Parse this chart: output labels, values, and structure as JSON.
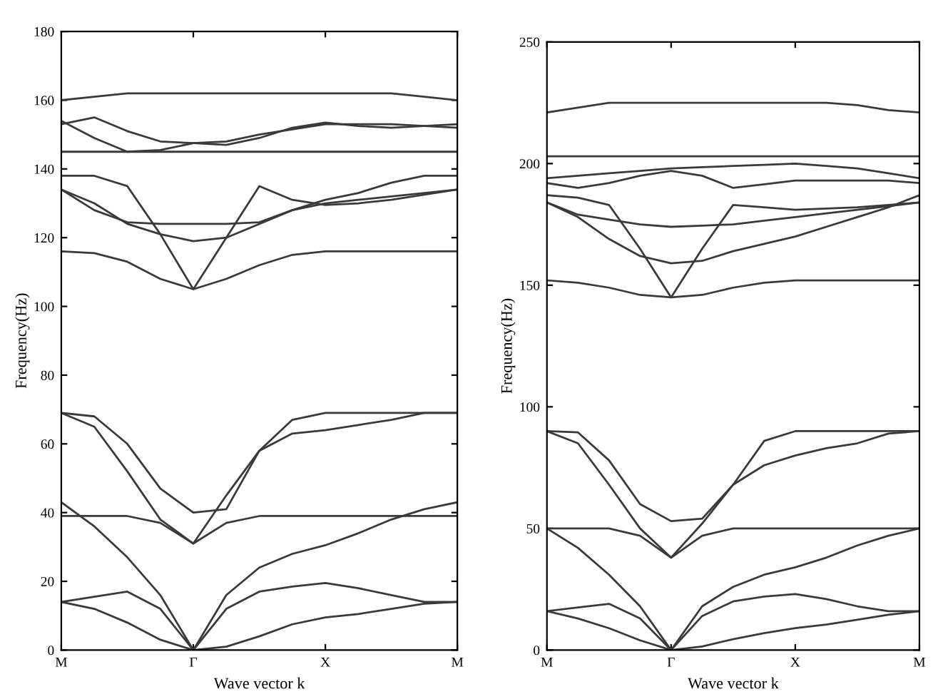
{
  "chart_data": [
    {
      "type": "line",
      "xlabel": "Wave vector k",
      "ylabel": "Frequency(Hz)",
      "categories": [
        "M",
        null,
        null,
        null,
        "Γ",
        null,
        null,
        null,
        "X",
        null,
        null,
        null,
        "M"
      ],
      "ylim": [
        0,
        180
      ],
      "yticks": [
        0,
        20,
        40,
        60,
        80,
        100,
        120,
        140,
        160,
        180
      ],
      "grid": false,
      "legend": false,
      "marker": "none",
      "line_style": "solid",
      "series": [
        {
          "color": "#3a3a3a",
          "values": [
            14,
            12,
            8,
            3,
            0,
            1,
            4,
            7.5,
            9.5,
            10.5,
            12,
            13.5,
            14
          ]
        },
        {
          "color": "#3a3a3a",
          "values": [
            14,
            15.5,
            17,
            12,
            0,
            12,
            17,
            18.5,
            19.5,
            18,
            16,
            14,
            14
          ]
        },
        {
          "color": "#3a3a3a",
          "values": [
            43,
            36,
            27,
            16,
            0,
            16,
            24,
            28,
            30.5,
            34,
            38,
            41,
            43
          ]
        },
        {
          "color": "#3a3a3a",
          "values": [
            39,
            39,
            39,
            37,
            31,
            37,
            39,
            39,
            39,
            39,
            39,
            39,
            39
          ]
        },
        {
          "color": "#3a3a3a",
          "values": [
            69,
            68,
            60,
            47,
            40,
            41,
            58,
            67,
            69,
            69,
            69,
            69,
            69
          ]
        },
        {
          "color": "#3a3a3a",
          "values": [
            69,
            65,
            52,
            38,
            31,
            45,
            58,
            63,
            64,
            65.5,
            67,
            69,
            69
          ]
        },
        {
          "color": "#3a3a3a",
          "values": [
            116,
            115.5,
            113,
            108,
            105,
            108,
            112,
            115,
            116,
            116,
            116,
            116,
            116
          ]
        },
        {
          "color": "#3a3a3a",
          "values": [
            134,
            130,
            124,
            121,
            119,
            120,
            124,
            128,
            130,
            131,
            132,
            133,
            134
          ]
        },
        {
          "color": "#3a3a3a",
          "values": [
            134,
            128,
            124.5,
            124,
            124,
            124,
            124.5,
            128,
            131,
            133,
            136,
            138,
            138
          ]
        },
        {
          "color": "#3a3a3a",
          "values": [
            138,
            138,
            135,
            121,
            105,
            120,
            135,
            131,
            129.5,
            130,
            131,
            132.5,
            134
          ]
        },
        {
          "color": "#3a3a3a",
          "values": [
            145,
            145,
            145,
            145,
            145,
            145,
            145,
            145,
            145,
            145,
            145,
            145,
            145
          ]
        },
        {
          "color": "#3a3a3a",
          "values": [
            153,
            155,
            151,
            148,
            147.5,
            147,
            149,
            152,
            153.5,
            152.5,
            152,
            152.5,
            153
          ]
        },
        {
          "color": "#3a3a3a",
          "values": [
            154,
            149,
            145,
            145.5,
            147.5,
            148,
            150,
            151.5,
            153,
            153,
            153,
            152.5,
            152
          ]
        },
        {
          "color": "#3a3a3a",
          "values": [
            160,
            161,
            162,
            162,
            162,
            162,
            162,
            162,
            162,
            162,
            162,
            161,
            160
          ]
        }
      ]
    },
    {
      "type": "line",
      "xlabel": "Wave vector k",
      "ylabel": "Frequency(Hz)",
      "categories": [
        "M",
        null,
        null,
        null,
        "Γ",
        null,
        null,
        null,
        "X",
        null,
        null,
        null,
        "M"
      ],
      "ylim": [
        0,
        250
      ],
      "yticks": [
        0,
        50,
        100,
        150,
        200,
        250
      ],
      "grid": false,
      "legend": false,
      "marker": "none",
      "line_style": "solid",
      "series": [
        {
          "color": "#3a3a3a",
          "values": [
            16,
            13,
            9,
            4,
            0,
            1.5,
            4.5,
            7,
            9,
            10.5,
            12.5,
            14.5,
            16
          ]
        },
        {
          "color": "#3a3a3a",
          "values": [
            16,
            17.5,
            19,
            13,
            0,
            14,
            20,
            22,
            23,
            21,
            18,
            16,
            16
          ]
        },
        {
          "color": "#3a3a3a",
          "values": [
            50,
            42,
            31,
            18,
            0,
            18,
            26,
            31,
            34,
            38,
            43,
            47,
            50
          ]
        },
        {
          "color": "#3a3a3a",
          "values": [
            50,
            50,
            50,
            47,
            38,
            47,
            50,
            50,
            50,
            50,
            50,
            50,
            50
          ]
        },
        {
          "color": "#3a3a3a",
          "values": [
            90,
            89.5,
            78,
            60,
            53,
            54,
            68,
            86,
            90,
            90,
            90,
            90,
            90
          ]
        },
        {
          "color": "#3a3a3a",
          "values": [
            90,
            85,
            68,
            50,
            38,
            52,
            68,
            76,
            80,
            83,
            85,
            89,
            90
          ]
        },
        {
          "color": "#3a3a3a",
          "values": [
            152,
            151,
            149,
            146,
            145,
            146,
            149,
            151,
            152,
            152,
            152,
            152,
            152
          ]
        },
        {
          "color": "#3a3a3a",
          "values": [
            184,
            178,
            169,
            162,
            159,
            160,
            164,
            167,
            170,
            174,
            178,
            182,
            187
          ]
        },
        {
          "color": "#3a3a3a",
          "values": [
            184,
            179,
            177,
            175,
            174,
            174.5,
            175,
            176.5,
            178,
            179.5,
            181,
            182.5,
            184
          ]
        },
        {
          "color": "#3a3a3a",
          "values": [
            187,
            186,
            183,
            165,
            145,
            165,
            183,
            182,
            181,
            181.5,
            182,
            183,
            184
          ]
        },
        {
          "color": "#3a3a3a",
          "values": [
            192,
            190,
            192,
            195,
            197,
            195,
            190,
            191.5,
            193,
            193,
            193,
            193,
            192
          ]
        },
        {
          "color": "#3a3a3a",
          "values": [
            194,
            195,
            196,
            197,
            198,
            198.5,
            199,
            199.5,
            200,
            199,
            198,
            196,
            194
          ]
        },
        {
          "color": "#3a3a3a",
          "values": [
            203,
            203,
            203,
            203,
            203,
            203,
            203,
            203,
            203,
            203,
            203,
            203,
            203
          ]
        },
        {
          "color": "#3a3a3a",
          "values": [
            221,
            223,
            225,
            225,
            225,
            225,
            225,
            225,
            225,
            225,
            224,
            222,
            221
          ]
        }
      ]
    }
  ]
}
